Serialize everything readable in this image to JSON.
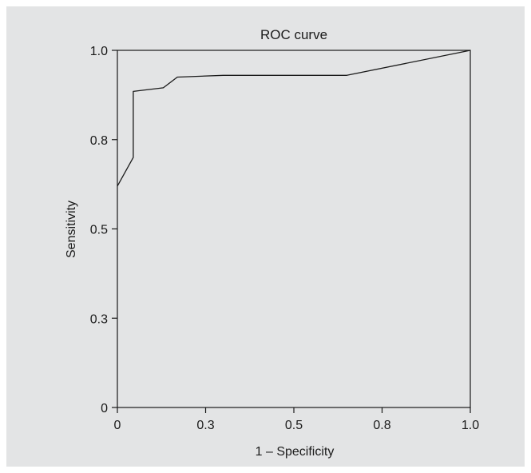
{
  "chart_data": {
    "type": "line",
    "title": "ROC curve",
    "xlabel": "1 – Specificity",
    "ylabel": "Sensitivity",
    "xlim": [
      0,
      1
    ],
    "ylim": [
      0,
      1
    ],
    "grid": false,
    "xticks": [
      0,
      0.25,
      0.5,
      0.75,
      1.0
    ],
    "xtick_labels": [
      "0",
      "0.3",
      "0.5",
      "0.8",
      "1.0"
    ],
    "yticks": [
      0,
      0.25,
      0.5,
      0.75,
      1.0
    ],
    "ytick_labels": [
      "0",
      "0.3",
      "0.5",
      "0.8",
      "1.0"
    ],
    "series": [
      {
        "x": [
          0,
          0.045,
          0.045,
          0.13,
          0.17,
          0.3,
          0.65,
          1.0
        ],
        "y": [
          0.62,
          0.7,
          0.885,
          0.895,
          0.925,
          0.93,
          0.93,
          1.0
        ]
      }
    ],
    "colors": {
      "line": "#1a1a1a",
      "background": "#e3e4e5"
    }
  }
}
